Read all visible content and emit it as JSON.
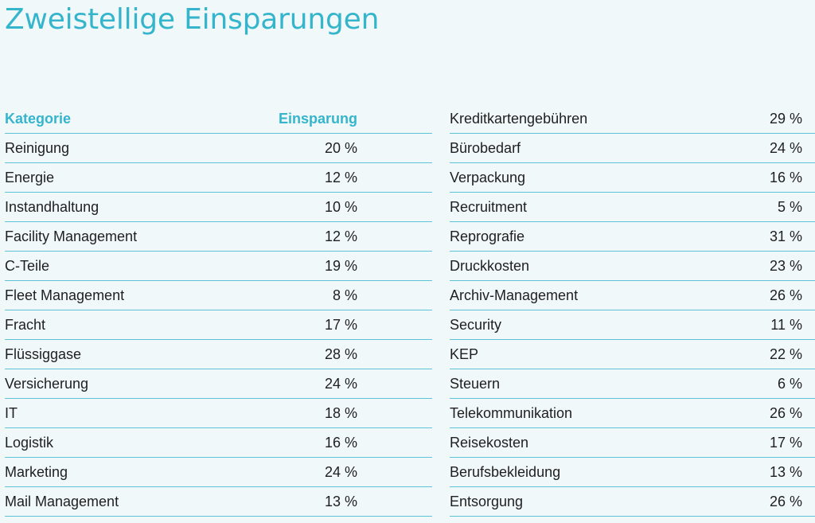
{
  "title": "Zweistellige Einsparungen",
  "table": {
    "headers": {
      "category": "Kategorie",
      "saving": "Einsparung"
    },
    "left_rows": [
      {
        "category": "Reinigung",
        "saving": "20 %"
      },
      {
        "category": "Energie",
        "saving": "12 %"
      },
      {
        "category": "Instandhaltung",
        "saving": "10 %"
      },
      {
        "category": "Facility Management",
        "saving": "12 %"
      },
      {
        "category": "C-Teile",
        "saving": "19 %"
      },
      {
        "category": "Fleet Management",
        "saving": "8 %"
      },
      {
        "category": "Fracht",
        "saving": "17 %"
      },
      {
        "category": "Flüssiggase",
        "saving": "28 %"
      },
      {
        "category": "Versicherung",
        "saving": "24 %"
      },
      {
        "category": "IT",
        "saving": "18 %"
      },
      {
        "category": "Logistik",
        "saving": "16 %"
      },
      {
        "category": "Marketing",
        "saving": "24 %"
      },
      {
        "category": "Mail Management",
        "saving": "13 %"
      }
    ],
    "right_rows": [
      {
        "category": "Kreditkartengebühren",
        "saving": "29 %"
      },
      {
        "category": "Bürobedarf",
        "saving": "24 %"
      },
      {
        "category": "Verpackung",
        "saving": "16 %"
      },
      {
        "category": "Recruitment",
        "saving": "5 %"
      },
      {
        "category": "Reprografie",
        "saving": "31 %"
      },
      {
        "category": "Druckkosten",
        "saving": "23 %"
      },
      {
        "category": "Archiv-Management",
        "saving": "26 %"
      },
      {
        "category": "Security",
        "saving": "11 %"
      },
      {
        "category": "KEP",
        "saving": "22 %"
      },
      {
        "category": "Steuern",
        "saving": "6 %"
      },
      {
        "category": "Telekommunikation",
        "saving": "26 %"
      },
      {
        "category": "Reisekosten",
        "saving": "17 %"
      },
      {
        "category": "Berufsbekleidung",
        "saving": "13 %"
      },
      {
        "category": "Entsorgung",
        "saving": "26 %"
      }
    ]
  },
  "colors": {
    "accent": "#35b5cc",
    "rule": "#5ec3d6",
    "background": "#f1f8fa",
    "text": "#1f1f1f"
  }
}
